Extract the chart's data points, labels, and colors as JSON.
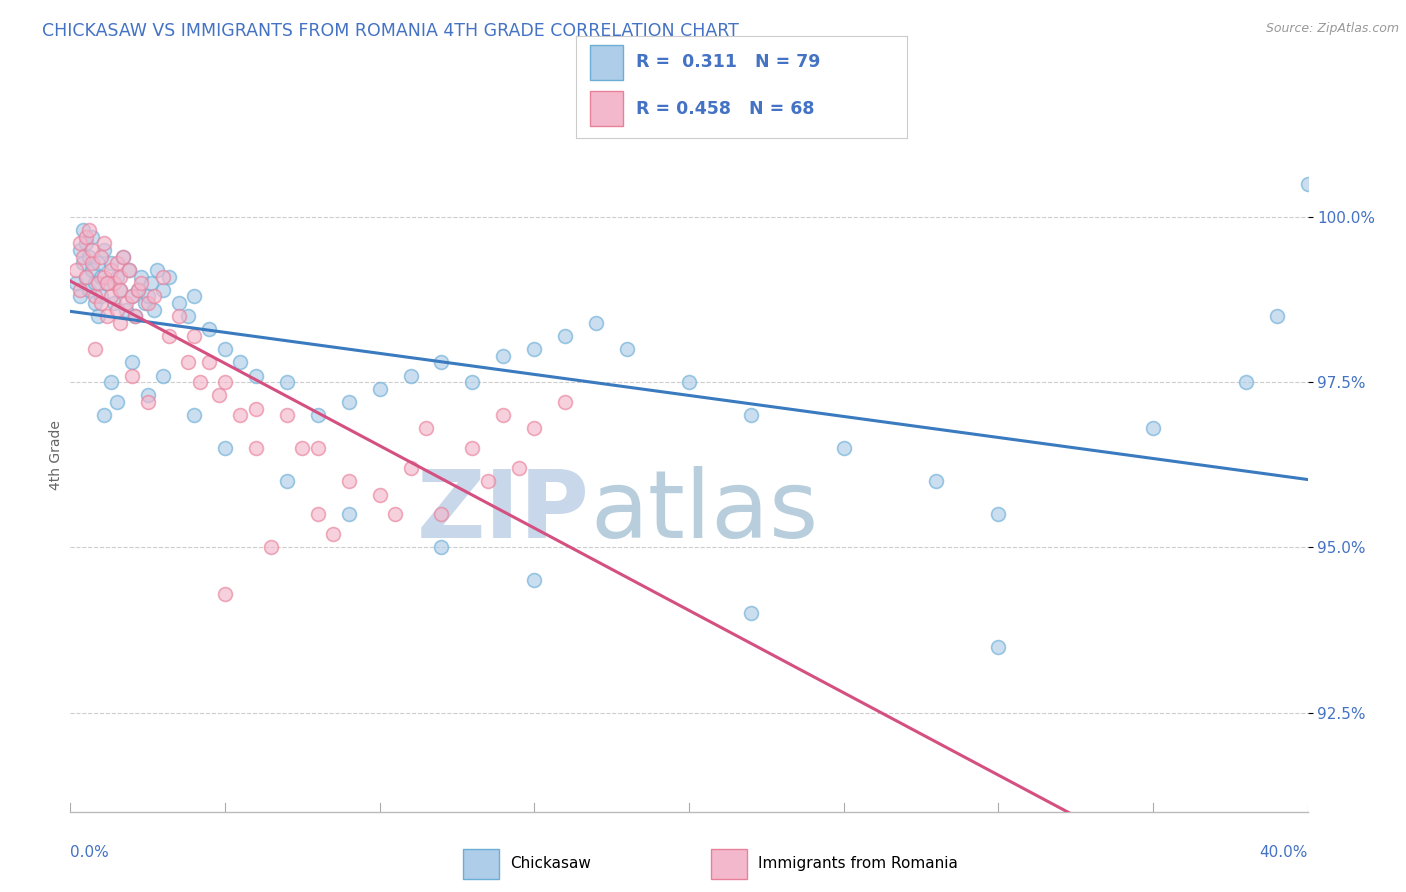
{
  "title": "CHICKASAW VS IMMIGRANTS FROM ROMANIA 4TH GRADE CORRELATION CHART",
  "source_text": "Source: ZipAtlas.com",
  "ylabel": "4th Grade",
  "xlim": [
    0.0,
    40.0
  ],
  "ylim": [
    91.0,
    101.8
  ],
  "ytick_values": [
    92.5,
    95.0,
    97.5,
    100.0
  ],
  "ytick_labels": [
    "92.5%",
    "95.0%",
    "97.5%",
    "100.0%"
  ],
  "legend_blue_label": "Chickasaw",
  "legend_pink_label": "Immigrants from Romania",
  "R_blue": 0.311,
  "N_blue": 79,
  "R_pink": 0.458,
  "N_pink": 68,
  "blue_color": "#aecde8",
  "blue_edge": "#6baed6",
  "pink_color": "#f4b8cc",
  "pink_edge": "#e8809a",
  "trend_blue_color": "#3a7abf",
  "trend_pink_color": "#d45080",
  "watermark_zip_color": "#c8d8ea",
  "watermark_atlas_color": "#b8cedd",
  "background_color": "#ffffff",
  "grid_color": "#c8c8c8",
  "axis_label_color": "#4472c4",
  "blue_scatter_x": [
    0.2,
    0.3,
    0.3,
    0.4,
    0.4,
    0.5,
    0.5,
    0.6,
    0.6,
    0.7,
    0.7,
    0.8,
    0.8,
    0.9,
    0.9,
    1.0,
    1.0,
    1.1,
    1.2,
    1.3,
    1.4,
    1.5,
    1.6,
    1.7,
    1.8,
    1.9,
    2.0,
    2.1,
    2.2,
    2.3,
    2.4,
    2.5,
    2.6,
    2.7,
    2.8,
    3.0,
    3.2,
    3.5,
    3.8,
    4.0,
    4.5,
    5.0,
    5.5,
    6.0,
    7.0,
    8.0,
    9.0,
    10.0,
    11.0,
    12.0,
    13.0,
    14.0,
    15.0,
    16.0,
    17.0,
    18.0,
    20.0,
    22.0,
    25.0,
    28.0,
    30.0,
    35.0,
    38.0,
    39.0,
    1.1,
    1.3,
    1.5,
    2.0,
    2.5,
    3.0,
    4.0,
    5.0,
    7.0,
    9.0,
    12.0,
    15.0,
    22.0,
    30.0,
    40.0
  ],
  "blue_scatter_y": [
    99.0,
    99.5,
    98.8,
    99.3,
    99.8,
    99.1,
    99.6,
    99.4,
    98.9,
    99.2,
    99.7,
    98.7,
    99.0,
    99.3,
    98.5,
    99.1,
    98.8,
    99.5,
    99.0,
    99.3,
    98.7,
    99.1,
    98.9,
    99.4,
    98.6,
    99.2,
    98.8,
    98.5,
    98.9,
    99.1,
    98.7,
    98.8,
    99.0,
    98.6,
    99.2,
    98.9,
    99.1,
    98.7,
    98.5,
    98.8,
    98.3,
    98.0,
    97.8,
    97.6,
    97.5,
    97.0,
    97.2,
    97.4,
    97.6,
    97.8,
    97.5,
    97.9,
    98.0,
    98.2,
    98.4,
    98.0,
    97.5,
    97.0,
    96.5,
    96.0,
    95.5,
    96.8,
    97.5,
    98.5,
    97.0,
    97.5,
    97.2,
    97.8,
    97.3,
    97.6,
    97.0,
    96.5,
    96.0,
    95.5,
    95.0,
    94.5,
    94.0,
    93.5,
    100.5
  ],
  "pink_scatter_x": [
    0.2,
    0.3,
    0.3,
    0.4,
    0.5,
    0.5,
    0.6,
    0.7,
    0.7,
    0.8,
    0.9,
    1.0,
    1.0,
    1.1,
    1.1,
    1.2,
    1.3,
    1.3,
    1.4,
    1.5,
    1.5,
    1.6,
    1.6,
    1.7,
    1.8,
    1.9,
    2.0,
    2.1,
    2.2,
    2.3,
    2.5,
    2.7,
    3.0,
    3.5,
    4.0,
    4.5,
    5.0,
    6.0,
    7.0,
    8.0,
    9.0,
    10.0,
    11.0,
    12.0,
    13.0,
    14.0,
    15.0,
    16.0,
    0.8,
    1.2,
    1.6,
    2.0,
    2.5,
    3.2,
    4.2,
    5.5,
    7.5,
    10.5,
    13.5,
    5.0,
    6.5,
    8.5,
    11.5,
    14.5,
    3.8,
    4.8,
    6.0,
    8.0
  ],
  "pink_scatter_y": [
    99.2,
    99.6,
    98.9,
    99.4,
    99.7,
    99.1,
    99.8,
    99.3,
    99.5,
    98.8,
    99.0,
    99.4,
    98.7,
    99.1,
    99.6,
    98.5,
    99.2,
    98.8,
    99.0,
    99.3,
    98.6,
    99.1,
    98.9,
    99.4,
    98.7,
    99.2,
    98.8,
    98.5,
    98.9,
    99.0,
    98.7,
    98.8,
    99.1,
    98.5,
    98.2,
    97.8,
    97.5,
    97.1,
    97.0,
    96.5,
    96.0,
    95.8,
    96.2,
    95.5,
    96.5,
    97.0,
    96.8,
    97.2,
    98.0,
    99.0,
    98.4,
    97.6,
    97.2,
    98.2,
    97.5,
    97.0,
    96.5,
    95.5,
    96.0,
    94.3,
    95.0,
    95.2,
    96.8,
    96.2,
    97.8,
    97.3,
    96.5,
    95.5
  ]
}
